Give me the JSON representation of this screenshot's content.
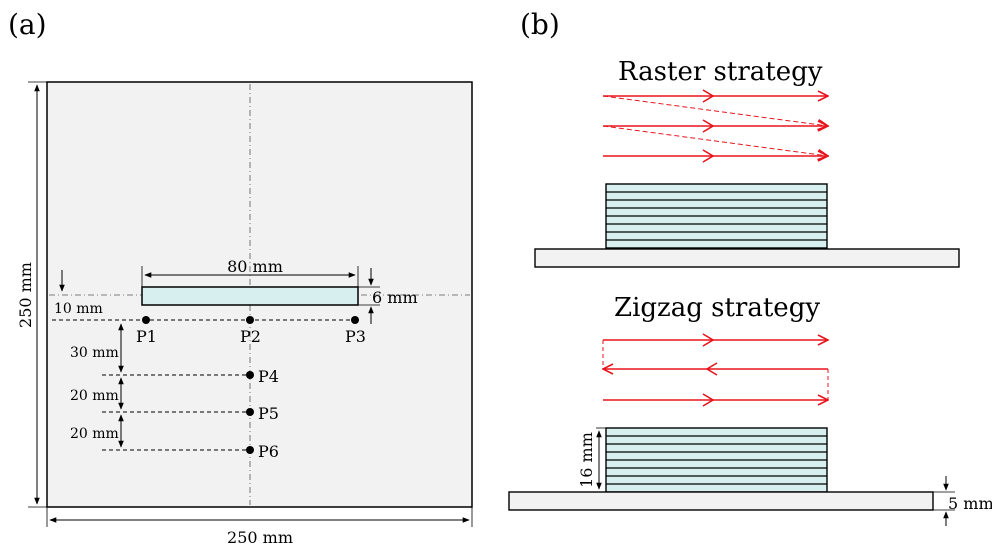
{
  "panel_a": {
    "label": "(a)",
    "dim_height": "250 mm",
    "dim_width": "250 mm",
    "dim_length": "80 mm",
    "dim_thickness": "6 mm",
    "dim_offset": "10 mm",
    "dim_gap1": "30 mm",
    "dim_gap2": "20 mm",
    "dim_gap3": "20 mm",
    "points": [
      "P1",
      "P2",
      "P3",
      "P4",
      "P5",
      "P6"
    ]
  },
  "panel_b": {
    "label": "(b)",
    "raster_title": "Raster strategy",
    "zigzag_title": "Zigzag strategy",
    "dim_wall_height": "16 mm",
    "dim_plate": "5 mm"
  },
  "colors": {
    "plate_fill": "#f2f2f2",
    "wall_fill": "#d8efef",
    "path_red": "#e8141c",
    "line": "#000000"
  }
}
